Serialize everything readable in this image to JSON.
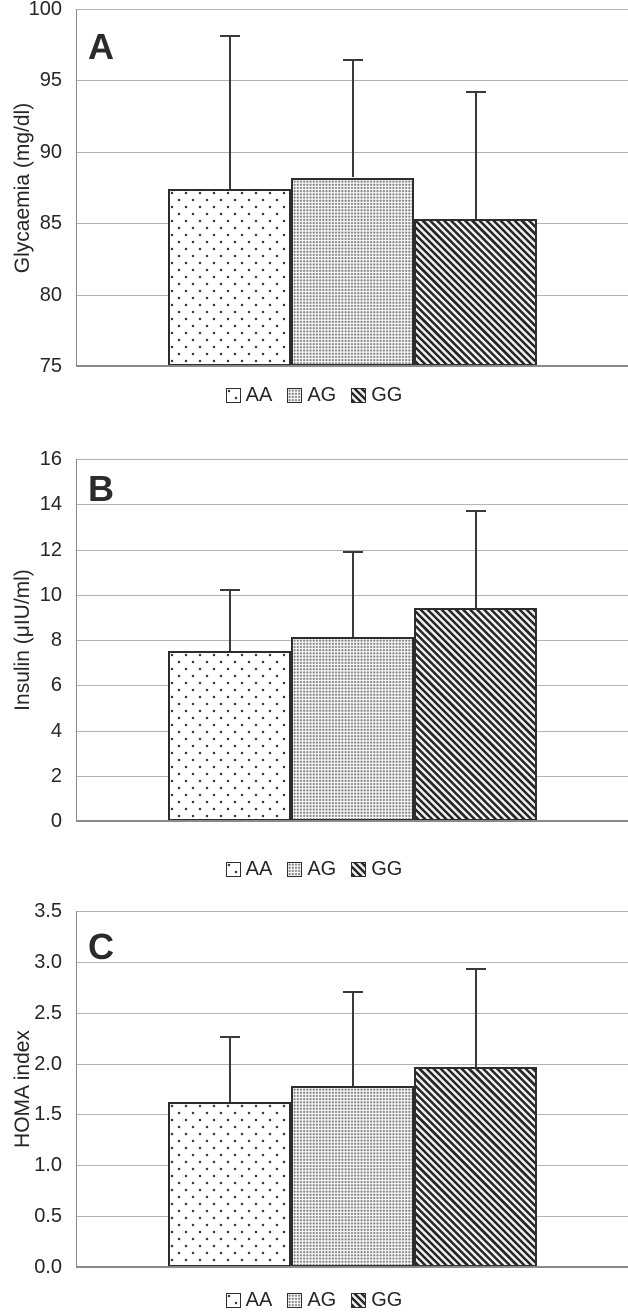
{
  "figure": {
    "panels": [
      "A",
      "B",
      "C"
    ],
    "legend": {
      "items": [
        {
          "label": "AA",
          "pattern": "sparse-dots"
        },
        {
          "label": "AG",
          "pattern": "dense-dots"
        },
        {
          "label": "GG",
          "pattern": "diagonal-stripes"
        }
      ],
      "position": "bottom-center"
    },
    "colors": {
      "text": "#262626",
      "gridline": "#b3b3b3",
      "axis": "#8a8a8a",
      "bar_border": "#2d2d2d",
      "error_bar": "#3a3a3a",
      "background": "#ffffff"
    }
  },
  "chart_data": [
    {
      "type": "bar",
      "panel_label": "A",
      "title": "",
      "xlabel": "",
      "ylabel": "Glycaemia (mg/dl)",
      "categories": [
        "AA",
        "AG",
        "GG"
      ],
      "values": [
        87.4,
        88.2,
        85.3
      ],
      "error_bar_top": [
        98.1,
        96.4,
        94.2
      ],
      "ylim": [
        75,
        100
      ],
      "yticks": [
        {
          "value": 75,
          "label": "75"
        },
        {
          "value": 80,
          "label": "80"
        },
        {
          "value": 85,
          "label": "85"
        },
        {
          "value": 90,
          "label": "90"
        },
        {
          "value": 95,
          "label": "95"
        },
        {
          "value": 100,
          "label": "100"
        }
      ],
      "grid": "horizontal",
      "legend_position": "bottom",
      "patterns": [
        "sparse-dots",
        "dense-dots",
        "diag-stripes"
      ]
    },
    {
      "type": "bar",
      "panel_label": "B",
      "title": "",
      "xlabel": "",
      "ylabel": "Insulin (μIU/ml)",
      "categories": [
        "AA",
        "AG",
        "GG"
      ],
      "values": [
        7.5,
        8.15,
        9.4
      ],
      "error_bar_top": [
        10.2,
        11.9,
        13.7
      ],
      "ylim": [
        0,
        16
      ],
      "yticks": [
        {
          "value": 0,
          "label": "0"
        },
        {
          "value": 2,
          "label": "2"
        },
        {
          "value": 4,
          "label": "4"
        },
        {
          "value": 6,
          "label": "6"
        },
        {
          "value": 8,
          "label": "8"
        },
        {
          "value": 10,
          "label": "10"
        },
        {
          "value": 12,
          "label": "12"
        },
        {
          "value": 14,
          "label": "14"
        },
        {
          "value": 16,
          "label": "16"
        }
      ],
      "grid": "horizontal",
      "legend_position": "bottom",
      "patterns": [
        "sparse-dots",
        "dense-dots",
        "diag-stripes"
      ]
    },
    {
      "type": "bar",
      "panel_label": "C",
      "title": "",
      "xlabel": "",
      "ylabel": "HOMA index",
      "categories": [
        "AA",
        "AG",
        "GG"
      ],
      "values": [
        1.62,
        1.78,
        1.97
      ],
      "error_bar_top": [
        2.26,
        2.7,
        2.93
      ],
      "ylim": [
        0,
        3.5
      ],
      "yticks": [
        {
          "value": 0.0,
          "label": "0.0"
        },
        {
          "value": 0.5,
          "label": "0.5"
        },
        {
          "value": 1.0,
          "label": "1.0"
        },
        {
          "value": 1.5,
          "label": "1.5"
        },
        {
          "value": 2.0,
          "label": "2.0"
        },
        {
          "value": 2.5,
          "label": "2.5"
        },
        {
          "value": 3.0,
          "label": "3.0"
        },
        {
          "value": 3.5,
          "label": "3.5"
        }
      ],
      "grid": "horizontal",
      "legend_position": "bottom",
      "patterns": [
        "sparse-dots",
        "dense-dots",
        "diag-stripes"
      ]
    }
  ]
}
